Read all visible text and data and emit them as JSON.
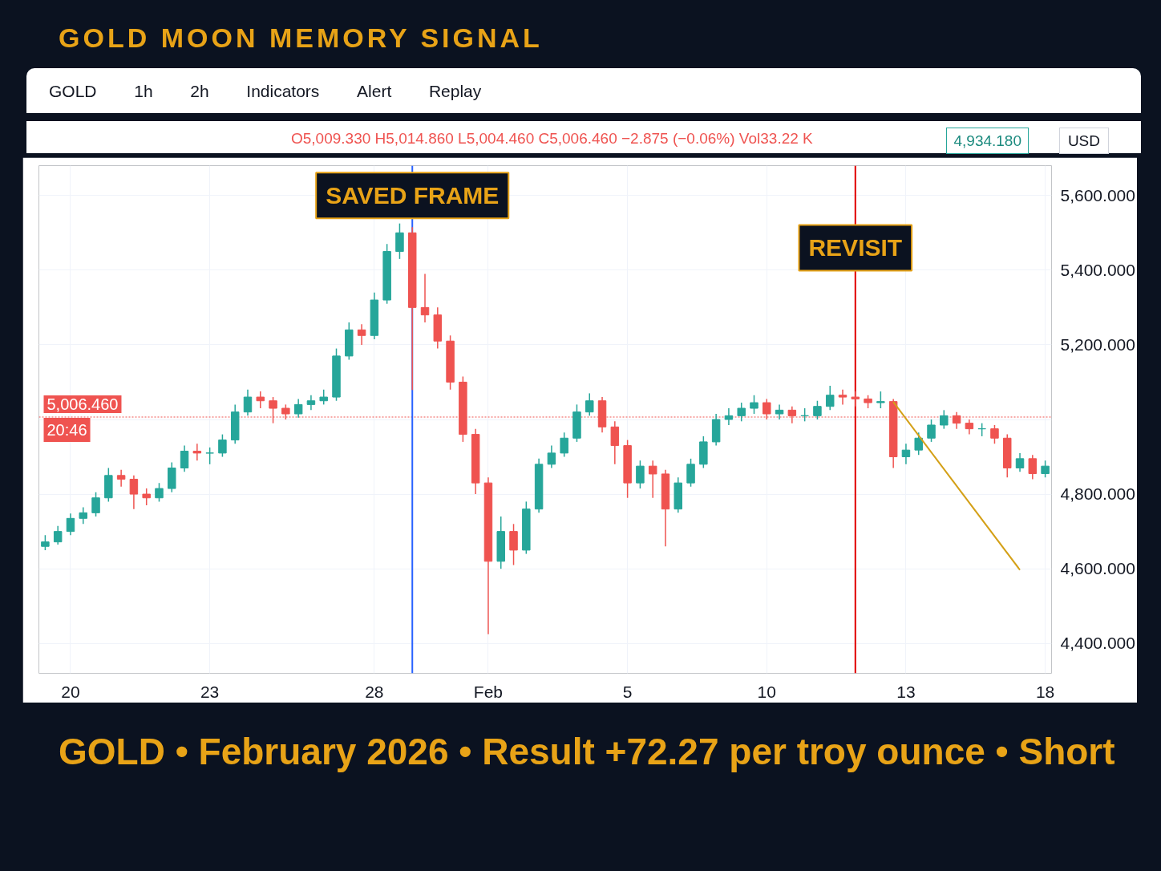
{
  "chart_data": {
    "type": "candlestick",
    "title": "GOLD MOON MEMORY SIGNAL",
    "annotations": [
      "GOLD",
      "1h",
      "2h",
      "Indicators",
      "Alert",
      "Replay",
      "USD",
      "O5,009.330 H5,014.860 L5,004.460 C5,006.460 −2.875 (−0.06%) Vol33.22 K",
      "20:46",
      "4,934.180",
      "GOLD • February 2026 • Result +72.27 per troy ounce • Short",
      "SAVED FRAME",
      "REVISIT"
    ],
    "categories": [
      null,
      null,
      "20",
      null,
      null,
      null,
      null,
      null,
      null,
      null,
      null,
      null,
      null,
      "23",
      null,
      null,
      null,
      null,
      null,
      null,
      null,
      null,
      null,
      null,
      null,
      null,
      "28",
      null,
      null,
      null,
      null,
      null,
      null,
      null,
      null,
      "Feb",
      null,
      null,
      null,
      null,
      null,
      null,
      null,
      null,
      null,
      null,
      "5",
      null,
      null,
      null,
      null,
      null,
      null,
      null,
      null,
      null,
      null,
      "10",
      null,
      null,
      null,
      null,
      null,
      null,
      null,
      null,
      null,
      null,
      "13",
      null,
      null,
      null,
      null,
      null,
      null,
      null,
      null,
      null,
      null,
      "18"
    ],
    "ohlc": [
      [
        4660,
        4690,
        4650,
        4672
      ],
      [
        4672,
        4715,
        4665,
        4700
      ],
      [
        4700,
        4748,
        4690,
        4735
      ],
      [
        4735,
        4765,
        4720,
        4750
      ],
      [
        4750,
        4805,
        4740,
        4790
      ],
      [
        4790,
        4870,
        4780,
        4850
      ],
      [
        4850,
        4865,
        4820,
        4840
      ],
      [
        4840,
        4850,
        4760,
        4800
      ],
      [
        4800,
        4815,
        4770,
        4790
      ],
      [
        4790,
        4830,
        4780,
        4815
      ],
      [
        4815,
        4885,
        4805,
        4870
      ],
      [
        4870,
        4930,
        4860,
        4915
      ],
      [
        4915,
        4935,
        4890,
        4910
      ],
      [
        4910,
        4925,
        4880,
        4910
      ],
      [
        4910,
        4960,
        4900,
        4945
      ],
      [
        4945,
        5040,
        4935,
        5020
      ],
      [
        5020,
        5080,
        5010,
        5060
      ],
      [
        5060,
        5075,
        5030,
        5050
      ],
      [
        5050,
        5060,
        4990,
        5030
      ],
      [
        5030,
        5040,
        5000,
        5015
      ],
      [
        5015,
        5055,
        5005,
        5040
      ],
      [
        5040,
        5065,
        5025,
        5050
      ],
      [
        5050,
        5080,
        5040,
        5060
      ],
      [
        5060,
        5190,
        5050,
        5170
      ],
      [
        5170,
        5260,
        5160,
        5240
      ],
      [
        5240,
        5255,
        5200,
        5225
      ],
      [
        5225,
        5340,
        5215,
        5320
      ],
      [
        5320,
        5470,
        5310,
        5450
      ],
      [
        5450,
        5525,
        5430,
        5500
      ],
      [
        5500,
        5515,
        5079,
        5300
      ],
      [
        5300,
        5390,
        5260,
        5280
      ],
      [
        5280,
        5300,
        5190,
        5210
      ],
      [
        5210,
        5225,
        5080,
        5100
      ],
      [
        5100,
        5115,
        4940,
        4960
      ],
      [
        4960,
        4975,
        4800,
        4830
      ],
      [
        4830,
        4845,
        4425,
        4620
      ],
      [
        4620,
        4740,
        4600,
        4700
      ],
      [
        4700,
        4720,
        4610,
        4650
      ],
      [
        4650,
        4780,
        4640,
        4760
      ],
      [
        4760,
        4895,
        4750,
        4880
      ],
      [
        4880,
        4930,
        4870,
        4910
      ],
      [
        4910,
        4965,
        4900,
        4950
      ],
      [
        4950,
        5040,
        4940,
        5020
      ],
      [
        5020,
        5070,
        5010,
        5050
      ],
      [
        5050,
        5060,
        4965,
        4980
      ],
      [
        4980,
        4995,
        4880,
        4930
      ],
      [
        4930,
        4945,
        4790,
        4830
      ],
      [
        4830,
        4890,
        4815,
        4875
      ],
      [
        4875,
        4890,
        4790,
        4854
      ],
      [
        4854,
        4865,
        4660,
        4760
      ],
      [
        4760,
        4845,
        4750,
        4830
      ],
      [
        4830,
        4895,
        4820,
        4880
      ],
      [
        4880,
        4955,
        4870,
        4940
      ],
      [
        4940,
        5015,
        4930,
        5000
      ],
      [
        5000,
        5030,
        4985,
        5010
      ],
      [
        5010,
        5045,
        4995,
        5030
      ],
      [
        5030,
        5065,
        5015,
        5045
      ],
      [
        5045,
        5055,
        5000,
        5015
      ],
      [
        5015,
        5040,
        5000,
        5025
      ],
      [
        5025,
        5035,
        4990,
        5010
      ],
      [
        5010,
        5030,
        4995,
        5010
      ],
      [
        5010,
        5050,
        5000,
        5035
      ],
      [
        5035,
        5090,
        5025,
        5065
      ],
      [
        5065,
        5080,
        5040,
        5060
      ],
      [
        5060,
        5075,
        5035,
        5055
      ],
      [
        5055,
        5065,
        5030,
        5045
      ],
      [
        5045,
        5075,
        5030,
        5048
      ],
      [
        5048,
        5055,
        4870,
        4900
      ],
      [
        4900,
        4935,
        4880,
        4918
      ],
      [
        4918,
        4965,
        4905,
        4950
      ],
      [
        4950,
        5000,
        4940,
        4985
      ],
      [
        4985,
        5025,
        4975,
        5010
      ],
      [
        5010,
        5020,
        4975,
        4990
      ],
      [
        4990,
        5000,
        4960,
        4975
      ],
      [
        4975,
        4990,
        4955,
        4975
      ],
      [
        4975,
        4985,
        4935,
        4950
      ],
      [
        4950,
        4960,
        4845,
        4870
      ],
      [
        4870,
        4910,
        4860,
        4895
      ],
      [
        4895,
        4905,
        4840,
        4855
      ],
      [
        4855,
        4890,
        4845,
        4875
      ]
    ],
    "colors": [
      "#26a69a",
      "#26a69a",
      "#26a69a",
      "#26a69a",
      "#26a69a",
      "#26a69a",
      "#ef5350",
      "#ef5350",
      "#ef5350",
      "#26a69a",
      "#26a69a",
      "#26a69a",
      "#ef5350",
      "#26a69a",
      "#26a69a",
      "#26a69a",
      "#26a69a",
      "#ef5350",
      "#ef5350",
      "#ef5350",
      "#26a69a",
      "#26a69a",
      "#26a69a",
      "#26a69a",
      "#26a69a",
      "#ef5350",
      "#26a69a",
      "#26a69a",
      "#26a69a",
      "#ef5350",
      "#ef5350",
      "#ef5350",
      "#ef5350",
      "#ef5350",
      "#ef5350",
      "#ef5350",
      "#26a69a",
      "#ef5350",
      "#26a69a",
      "#26a69a",
      "#26a69a",
      "#26a69a",
      "#26a69a",
      "#26a69a",
      "#ef5350",
      "#ef5350",
      "#ef5350",
      "#26a69a",
      "#ef5350",
      "#ef5350",
      "#26a69a",
      "#26a69a",
      "#26a69a",
      "#26a69a",
      "#26a69a",
      "#26a69a",
      "#26a69a",
      "#ef5350",
      "#26a69a",
      "#ef5350",
      "#26a69a",
      "#26a69a",
      "#26a69a",
      "#ef5350",
      "#ef5350",
      "#ef5350",
      "#26a69a",
      "#ef5350",
      "#26a69a",
      "#26a69a",
      "#26a69a",
      "#26a69a",
      "#ef5350",
      "#ef5350",
      "#26a69a",
      "#ef5350",
      "#ef5350",
      "#26a69a",
      "#ef5350",
      "#26a69a"
    ],
    "series": [
      {
        "type": "line",
        "values": [
          null,
          null,
          null,
          null,
          null,
          null,
          null,
          null,
          null,
          null,
          null,
          null,
          null,
          null,
          null,
          null,
          null,
          null,
          null,
          null,
          null,
          null,
          null,
          null,
          null,
          null,
          null,
          null,
          null,
          null,
          null,
          null,
          null,
          null,
          null,
          null,
          null,
          null,
          null,
          null,
          null,
          null,
          null,
          null,
          null,
          null,
          null,
          null,
          null,
          null,
          null,
          null,
          null,
          null,
          null,
          null,
          null,
          null,
          null,
          null,
          null,
          null,
          null,
          null,
          null,
          null,
          null,
          5047,
          null,
          null,
          null,
          null,
          null,
          null,
          null,
          null,
          null,
          4597,
          null,
          null
        ],
        "color": "#d4a017"
      }
    ],
    "ylim": [
      4320,
      5680
    ],
    "yticks": [
      {
        "value": 4400,
        "label": "4,400.000"
      },
      {
        "value": 4600,
        "label": "4,600.000"
      },
      {
        "value": 4800,
        "label": "4,800.000"
      },
      {
        "value": 5000,
        "label": null
      },
      {
        "value": 5200,
        "label": "5,200.000"
      },
      {
        "value": 5400,
        "label": "5,400.000"
      },
      {
        "value": 5600,
        "label": "5,600.000"
      }
    ],
    "ref_lines": [
      {
        "axis": "y",
        "value": 5006.46,
        "label": "5,006.460",
        "color": "#ef5350",
        "line_style": "dotted"
      }
    ],
    "grid": true
  }
}
